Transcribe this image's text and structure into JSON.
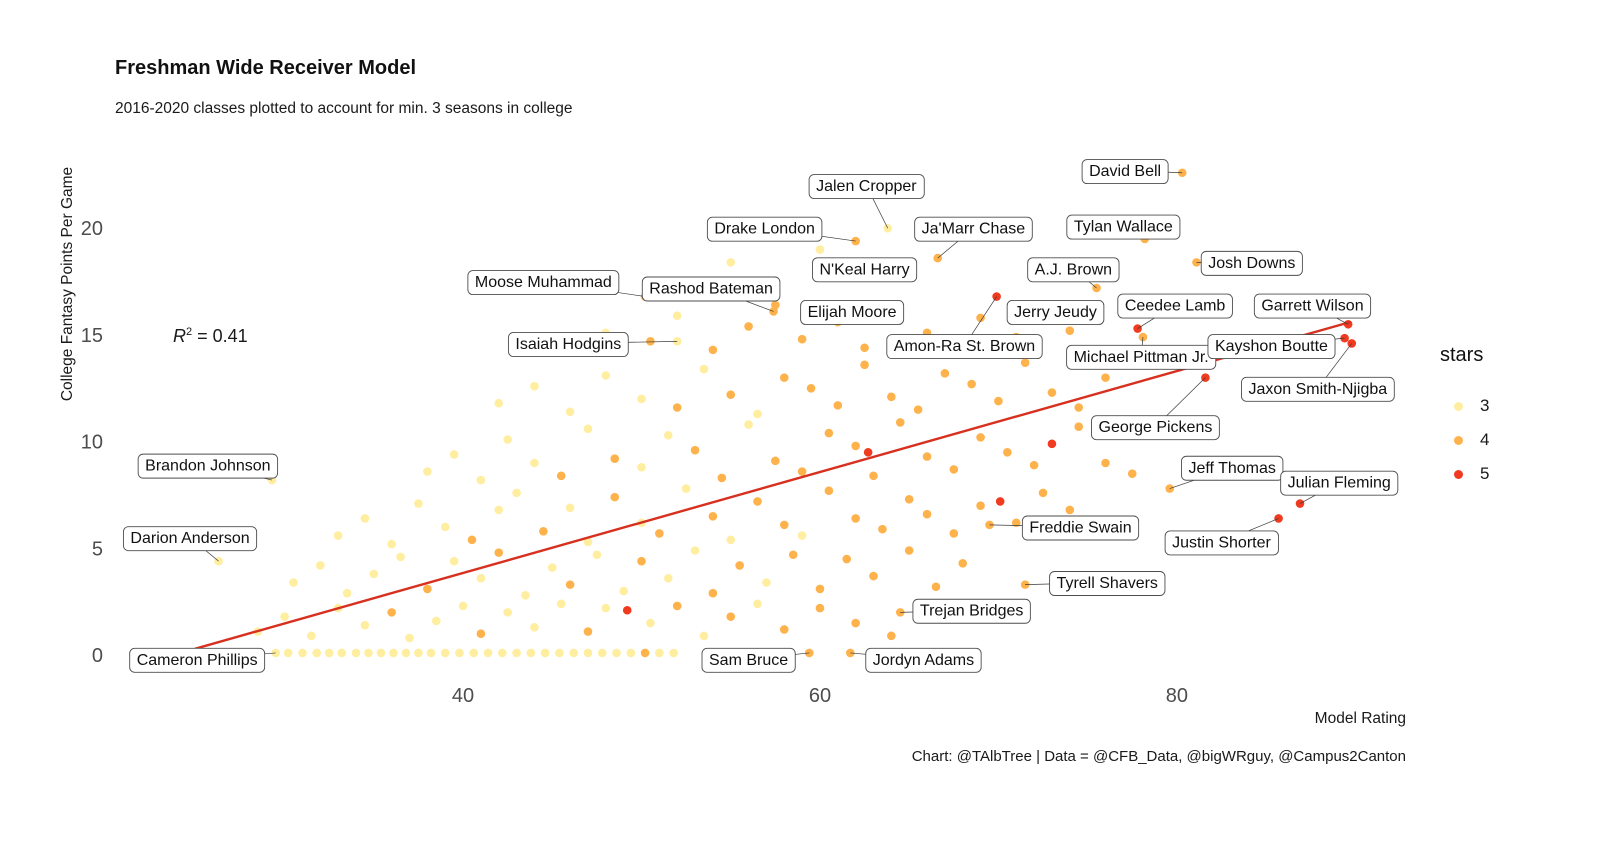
{
  "title": "Freshman Wide Receiver Model",
  "subtitle": "2016-2020 classes plotted to account for min. 3 seasons in college",
  "caption": "Chart: @TAlbTree | Data = @CFB_Data, @bigWRguy, @Campus2Canton",
  "annotation": {
    "r_italic": "R",
    "exponent": "2",
    "rest": " = 0.41"
  },
  "axes": {
    "x_label": "Model Rating",
    "y_label": "College Fantasy Points Per Game",
    "x_ticks": [
      40,
      60,
      80
    ],
    "y_ticks": [
      0,
      5,
      10,
      15,
      20
    ],
    "x_range": [
      21,
      92
    ],
    "y_range": [
      -0.7,
      23.9
    ]
  },
  "legend": {
    "title": "stars",
    "items": [
      {
        "label": "3",
        "color": "#FFEDA0"
      },
      {
        "label": "4",
        "color": "#FEB24C"
      },
      {
        "label": "5",
        "color": "#F03B20"
      }
    ]
  },
  "colors": {
    "3": "#FFEDA0",
    "4": "#FEB24C",
    "5": "#F03B20",
    "trend": "#D7301F",
    "label_border": "#4d4d4d",
    "tick_text": "#4d4d4d"
  },
  "chart_data": {
    "type": "scatter",
    "title": "Freshman Wide Receiver Model",
    "xlabel": "Model Rating",
    "ylabel": "College Fantasy Points Per Game",
    "color_key": "stars",
    "grid": false,
    "legend_position": "right",
    "r_squared": 0.41,
    "trend_line": {
      "x1": 25,
      "y1": 0.3,
      "x2": 89.7,
      "y2": 15.6
    },
    "labeled_points": [
      {
        "name": "David Bell",
        "x": 80.3,
        "y": 22.6,
        "stars": 4,
        "lx": 77.1,
        "ly": 22.7
      },
      {
        "name": "Jalen Cropper",
        "x": 63.8,
        "y": 20.0,
        "stars": 3,
        "lx": 62.6,
        "ly": 22.0
      },
      {
        "name": "Drake London",
        "x": 62.0,
        "y": 19.4,
        "stars": 4,
        "lx": 56.9,
        "ly": 20.0
      },
      {
        "name": "Ja'Marr Chase",
        "x": 66.6,
        "y": 18.6,
        "stars": 4,
        "lx": 68.6,
        "ly": 20.0
      },
      {
        "name": "Tylan Wallace",
        "x": 78.2,
        "y": 19.5,
        "stars": 4,
        "lx": 77.0,
        "ly": 20.1
      },
      {
        "name": "N'Keal Harry",
        "x": 64.0,
        "y": 17.9,
        "stars": 4,
        "lx": 62.5,
        "ly": 18.1
      },
      {
        "name": "Josh Downs",
        "x": 81.1,
        "y": 18.4,
        "stars": 4,
        "lx": 84.2,
        "ly": 18.4
      },
      {
        "name": "A.J. Brown",
        "x": 75.5,
        "y": 17.2,
        "stars": 4,
        "lx": 74.2,
        "ly": 18.1
      },
      {
        "name": "Moose Muhammad",
        "x": 50.2,
        "y": 16.8,
        "stars": 4,
        "lx": 44.5,
        "ly": 17.5
      },
      {
        "name": "Rashod Bateman",
        "x": 57.4,
        "y": 16.1,
        "stars": 4,
        "lx": 53.9,
        "ly": 17.2
      },
      {
        "name": "Elijah Moore",
        "x": 59.8,
        "y": 15.7,
        "stars": 4,
        "lx": 61.8,
        "ly": 16.1
      },
      {
        "name": "Jerry Jeudy",
        "x": 71.5,
        "y": 16.2,
        "stars": 4,
        "lx": 73.2,
        "ly": 16.1
      },
      {
        "name": "Amon-Ra St. Brown",
        "x": 69.9,
        "y": 16.8,
        "stars": 5,
        "lx": 68.1,
        "ly": 14.5
      },
      {
        "name": "Ceedee Lamb",
        "x": 77.8,
        "y": 15.3,
        "stars": 5,
        "lx": 79.9,
        "ly": 16.4
      },
      {
        "name": "Garrett Wilson",
        "x": 89.6,
        "y": 15.5,
        "stars": 5,
        "lx": 87.6,
        "ly": 16.4
      },
      {
        "name": "Isaiah Hodgins",
        "x": 52.0,
        "y": 14.7,
        "stars": 3,
        "lx": 45.9,
        "ly": 14.6
      },
      {
        "name": "Michael Pittman Jr.",
        "x": 78.1,
        "y": 14.9,
        "stars": 4,
        "lx": 78.0,
        "ly": 14.0
      },
      {
        "name": "Kayshon Boutte",
        "x": 89.4,
        "y": 14.85,
        "stars": 5,
        "lx": 85.3,
        "ly": 14.5
      },
      {
        "name": "Jaxon Smith-Njigba",
        "x": 89.8,
        "y": 14.6,
        "stars": 5,
        "lx": 87.9,
        "ly": 12.5
      },
      {
        "name": "George Pickens",
        "x": 81.6,
        "y": 13.0,
        "stars": 5,
        "lx": 78.8,
        "ly": 10.7
      },
      {
        "name": "Brandon Johnson",
        "x": 29.3,
        "y": 8.2,
        "stars": 3,
        "lx": 25.7,
        "ly": 8.9
      },
      {
        "name": "Jeff Thomas",
        "x": 79.6,
        "y": 7.8,
        "stars": 4,
        "lx": 83.1,
        "ly": 8.8
      },
      {
        "name": "Julian Fleming",
        "x": 86.9,
        "y": 7.1,
        "stars": 5,
        "lx": 89.1,
        "ly": 8.1
      },
      {
        "name": "Darion Anderson",
        "x": 26.3,
        "y": 4.4,
        "stars": 3,
        "lx": 24.7,
        "ly": 5.5
      },
      {
        "name": "Freddie Swain",
        "x": 69.5,
        "y": 6.1,
        "stars": 4,
        "lx": 74.6,
        "ly": 6.0
      },
      {
        "name": "Justin Shorter",
        "x": 85.7,
        "y": 6.4,
        "stars": 5,
        "lx": 82.5,
        "ly": 5.3
      },
      {
        "name": "Tyrell Shavers",
        "x": 71.5,
        "y": 3.3,
        "stars": 4,
        "lx": 76.1,
        "ly": 3.4
      },
      {
        "name": "Trejan Bridges",
        "x": 64.5,
        "y": 2.0,
        "stars": 4,
        "lx": 68.5,
        "ly": 2.1
      },
      {
        "name": "Cameron Phillips",
        "x": 29.5,
        "y": 0.1,
        "stars": 3,
        "lx": 25.1,
        "ly": -0.2
      },
      {
        "name": "Sam Bruce",
        "x": 59.4,
        "y": 0.1,
        "stars": 4,
        "lx": 56.0,
        "ly": -0.2
      },
      {
        "name": "Jordyn Adams",
        "x": 61.7,
        "y": 0.1,
        "stars": 4,
        "lx": 65.8,
        "ly": -0.2
      }
    ],
    "background_points": [
      [
        23.8,
        0.1,
        3
      ],
      [
        25.2,
        0.1,
        3
      ],
      [
        26.1,
        0.1,
        3
      ],
      [
        27,
        0.1,
        3
      ],
      [
        27.8,
        0.1,
        3
      ],
      [
        28.6,
        0.1,
        3
      ],
      [
        30.2,
        0.1,
        3
      ],
      [
        31,
        0.1,
        3
      ],
      [
        31.8,
        0.1,
        3
      ],
      [
        32.5,
        0.1,
        3
      ],
      [
        33.2,
        0.1,
        3
      ],
      [
        34,
        0.1,
        3
      ],
      [
        34.7,
        0.1,
        3
      ],
      [
        35.4,
        0.1,
        3
      ],
      [
        36.1,
        0.1,
        3
      ],
      [
        36.8,
        0.1,
        3
      ],
      [
        37.5,
        0.1,
        3
      ],
      [
        38.2,
        0.1,
        3
      ],
      [
        39,
        0.1,
        3
      ],
      [
        39.8,
        0.1,
        3
      ],
      [
        40.6,
        0.1,
        3
      ],
      [
        41.4,
        0.1,
        3
      ],
      [
        42.2,
        0.1,
        3
      ],
      [
        43,
        0.1,
        3
      ],
      [
        43.8,
        0.1,
        3
      ],
      [
        44.6,
        0.1,
        3
      ],
      [
        45.4,
        0.1,
        3
      ],
      [
        46.2,
        0.1,
        3
      ],
      [
        47,
        0.1,
        3
      ],
      [
        47.8,
        0.1,
        3
      ],
      [
        48.6,
        0.1,
        3
      ],
      [
        49.4,
        0.1,
        3
      ],
      [
        50.2,
        0.1,
        4
      ],
      [
        51,
        0.1,
        3
      ],
      [
        51.8,
        0.1,
        3
      ],
      [
        28.5,
        1.1,
        3
      ],
      [
        30,
        1.8,
        3
      ],
      [
        31.5,
        0.9,
        3
      ],
      [
        33,
        2.2,
        3
      ],
      [
        34.5,
        1.4,
        3
      ],
      [
        36,
        2.0,
        4
      ],
      [
        37,
        0.8,
        3
      ],
      [
        38.5,
        1.6,
        3
      ],
      [
        40,
        2.3,
        3
      ],
      [
        41,
        1.0,
        4
      ],
      [
        42.5,
        2.0,
        3
      ],
      [
        44,
        1.3,
        3
      ],
      [
        45.5,
        2.4,
        3
      ],
      [
        47,
        1.1,
        4
      ],
      [
        48,
        2.2,
        3
      ],
      [
        49.2,
        2.1,
        5
      ],
      [
        50.5,
        1.5,
        3
      ],
      [
        52,
        2.3,
        4
      ],
      [
        53.5,
        0.9,
        3
      ],
      [
        55,
        1.8,
        4
      ],
      [
        56.5,
        2.4,
        3
      ],
      [
        58,
        1.2,
        4
      ],
      [
        60,
        2.2,
        4
      ],
      [
        62,
        1.5,
        4
      ],
      [
        64,
        0.9,
        4
      ],
      [
        30.5,
        3.4,
        3
      ],
      [
        32,
        4.2,
        3
      ],
      [
        33.5,
        2.9,
        3
      ],
      [
        35,
        3.8,
        3
      ],
      [
        36.5,
        4.6,
        3
      ],
      [
        38,
        3.1,
        4
      ],
      [
        39.5,
        4.4,
        3
      ],
      [
        41,
        3.6,
        3
      ],
      [
        42,
        4.8,
        4
      ],
      [
        43.5,
        2.8,
        3
      ],
      [
        45,
        4.1,
        3
      ],
      [
        46,
        3.3,
        4
      ],
      [
        47.5,
        4.7,
        3
      ],
      [
        49,
        3.0,
        3
      ],
      [
        50,
        4.4,
        4
      ],
      [
        51.5,
        3.6,
        3
      ],
      [
        53,
        4.9,
        3
      ],
      [
        54,
        2.9,
        4
      ],
      [
        55.5,
        4.2,
        4
      ],
      [
        57,
        3.4,
        3
      ],
      [
        58.5,
        4.7,
        4
      ],
      [
        60,
        3.1,
        4
      ],
      [
        61.5,
        4.5,
        4
      ],
      [
        63,
        3.7,
        4
      ],
      [
        65,
        4.9,
        4
      ],
      [
        66.5,
        3.2,
        4
      ],
      [
        68,
        4.3,
        4
      ],
      [
        33,
        5.6,
        3
      ],
      [
        34.5,
        6.4,
        3
      ],
      [
        36,
        5.2,
        3
      ],
      [
        37.5,
        7.1,
        3
      ],
      [
        39,
        6.0,
        3
      ],
      [
        40.5,
        5.4,
        4
      ],
      [
        42,
        6.8,
        3
      ],
      [
        43,
        7.6,
        3
      ],
      [
        44.5,
        5.8,
        4
      ],
      [
        46,
        6.9,
        3
      ],
      [
        47,
        5.3,
        3
      ],
      [
        48.5,
        7.4,
        4
      ],
      [
        50,
        6.2,
        3
      ],
      [
        51,
        5.7,
        4
      ],
      [
        52.5,
        7.8,
        3
      ],
      [
        54,
        6.5,
        4
      ],
      [
        55,
        5.4,
        3
      ],
      [
        56.5,
        7.2,
        4
      ],
      [
        58,
        6.1,
        4
      ],
      [
        59,
        5.6,
        3
      ],
      [
        60.5,
        7.7,
        4
      ],
      [
        62,
        6.4,
        4
      ],
      [
        63.5,
        5.9,
        4
      ],
      [
        65,
        7.3,
        4
      ],
      [
        66,
        6.6,
        4
      ],
      [
        67.5,
        5.7,
        4
      ],
      [
        69,
        7.0,
        4
      ],
      [
        70.1,
        7.2,
        5
      ],
      [
        71,
        6.2,
        4
      ],
      [
        72.5,
        7.6,
        4
      ],
      [
        74,
        6.8,
        4
      ],
      [
        38,
        8.6,
        3
      ],
      [
        39.5,
        9.4,
        3
      ],
      [
        41,
        8.2,
        3
      ],
      [
        42.5,
        10.1,
        3
      ],
      [
        44,
        9.0,
        3
      ],
      [
        45.5,
        8.4,
        4
      ],
      [
        47,
        10.6,
        3
      ],
      [
        48.5,
        9.2,
        4
      ],
      [
        50,
        8.8,
        3
      ],
      [
        51.5,
        10.3,
        3
      ],
      [
        53,
        9.6,
        4
      ],
      [
        54.5,
        8.3,
        4
      ],
      [
        56,
        10.8,
        3
      ],
      [
        57.5,
        9.1,
        4
      ],
      [
        59,
        8.6,
        4
      ],
      [
        60.5,
        10.4,
        4
      ],
      [
        62,
        9.8,
        4
      ],
      [
        62.7,
        9.5,
        5
      ],
      [
        63,
        8.4,
        4
      ],
      [
        64.5,
        10.9,
        4
      ],
      [
        66,
        9.3,
        4
      ],
      [
        67.5,
        8.7,
        4
      ],
      [
        69,
        10.2,
        4
      ],
      [
        70.5,
        9.5,
        4
      ],
      [
        72,
        8.9,
        4
      ],
      [
        73,
        9.9,
        5
      ],
      [
        74.5,
        10.7,
        4
      ],
      [
        76,
        9.0,
        4
      ],
      [
        77.5,
        8.5,
        4
      ],
      [
        42,
        11.8,
        3
      ],
      [
        44,
        12.6,
        3
      ],
      [
        46,
        11.4,
        3
      ],
      [
        48,
        13.1,
        3
      ],
      [
        50,
        12.0,
        3
      ],
      [
        52,
        11.6,
        4
      ],
      [
        53.5,
        13.4,
        3
      ],
      [
        55,
        12.2,
        4
      ],
      [
        56.5,
        11.3,
        3
      ],
      [
        58,
        13.0,
        4
      ],
      [
        59.5,
        12.5,
        4
      ],
      [
        61,
        11.7,
        4
      ],
      [
        62.5,
        13.6,
        4
      ],
      [
        64,
        12.1,
        4
      ],
      [
        65.5,
        11.5,
        4
      ],
      [
        67,
        13.2,
        4
      ],
      [
        68.5,
        12.7,
        4
      ],
      [
        70,
        11.9,
        4
      ],
      [
        71.5,
        13.7,
        4
      ],
      [
        73,
        12.3,
        4
      ],
      [
        74.5,
        11.6,
        4
      ],
      [
        76,
        13.0,
        4
      ],
      [
        45.5,
        14.4,
        3
      ],
      [
        48,
        15.1,
        3
      ],
      [
        50.5,
        14.7,
        4
      ],
      [
        52,
        15.9,
        3
      ],
      [
        54,
        14.3,
        4
      ],
      [
        56,
        15.4,
        4
      ],
      [
        57.5,
        16.4,
        4
      ],
      [
        59,
        14.8,
        4
      ],
      [
        61,
        15.6,
        4
      ],
      [
        62.5,
        14.4,
        4
      ],
      [
        64,
        16.0,
        4
      ],
      [
        66,
        15.1,
        4
      ],
      [
        67.5,
        14.6,
        4
      ],
      [
        69,
        15.8,
        4
      ],
      [
        71,
        14.9,
        4
      ],
      [
        72.5,
        16.2,
        4
      ],
      [
        74,
        15.2,
        4
      ],
      [
        55,
        18.4,
        3
      ],
      [
        60,
        19.0,
        3
      ],
      [
        68,
        19.8,
        4
      ]
    ]
  }
}
